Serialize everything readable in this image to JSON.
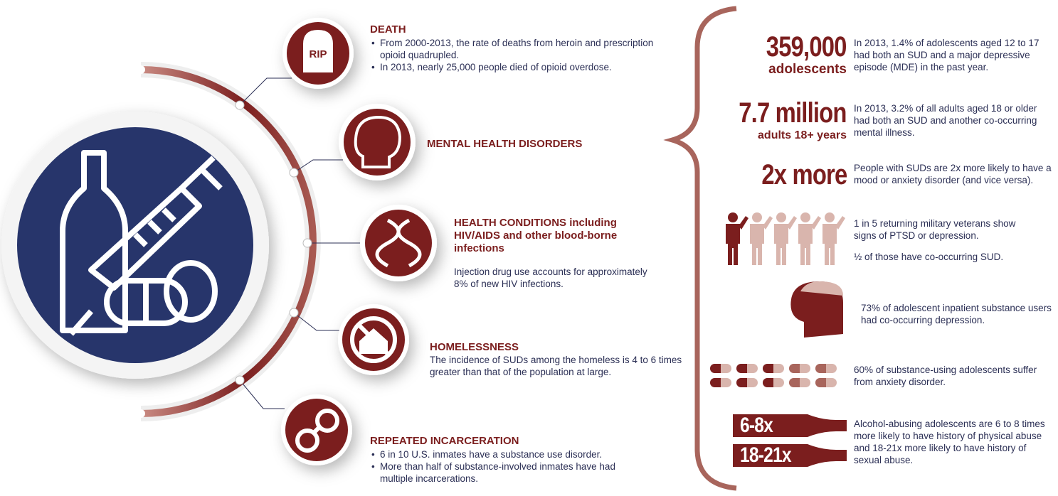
{
  "consequences": [
    {
      "icon_label": "RIP",
      "title": "DEATH",
      "bullets": [
        "From 2000-2013, the rate of deaths from heroin and prescription opioid quadrupled.",
        "In 2013, nearly 25,000 people died of opioid overdose."
      ]
    },
    {
      "title": "MENTAL HEALTH DISORDERS"
    },
    {
      "title": "HEALTH CONDITIONS including HIV/AIDS and other blood-borne infections",
      "text": "Injection drug use accounts for approximately 8% of new HIV infections."
    },
    {
      "title": "HOMELESSNESS",
      "text": "The incidence of SUDs among the homeless is 4 to 6 times greater than that of the population at large."
    },
    {
      "title": "REPEATED INCARCERATION",
      "bullets": [
        "6 in 10 U.S. inmates have a substance use disorder.",
        "More than half of substance-involved inmates have had multiple incarcerations."
      ]
    }
  ],
  "facts": [
    {
      "figure": "359,000",
      "unit": "adolescents",
      "text": "In 2013, 1.4% of adolescents aged 12 to 17 had both an SUD and a major depressive episode (MDE) in the past year."
    },
    {
      "figure": "7.7 million",
      "unit": "adults 18+ years",
      "text": "In 2013, 3.2% of all adults aged 18 or older had both an SUD and another co-occurring mental illness."
    },
    {
      "figure": "2x more",
      "text": "People with SUDs are 2x more likely to have a mood or anxiety disorder (and vice versa)."
    },
    {
      "text": "1 in 5 returning military veterans show signs of PTSD or depression.",
      "note": "½ of those have co-occurring SUD."
    },
    {
      "text": "73% of adolescent inpatient substance users had co-occurring depression."
    },
    {
      "text": "60% of substance-using adolescents suffer from anxiety disorder."
    },
    {
      "figures": [
        "6-8x",
        "18-21x"
      ],
      "text": "Alcohol-abusing adolescents are 6 to 8 times more likely to have history of physical abuse and 18-21x more likely to have history of sexual abuse."
    }
  ]
}
